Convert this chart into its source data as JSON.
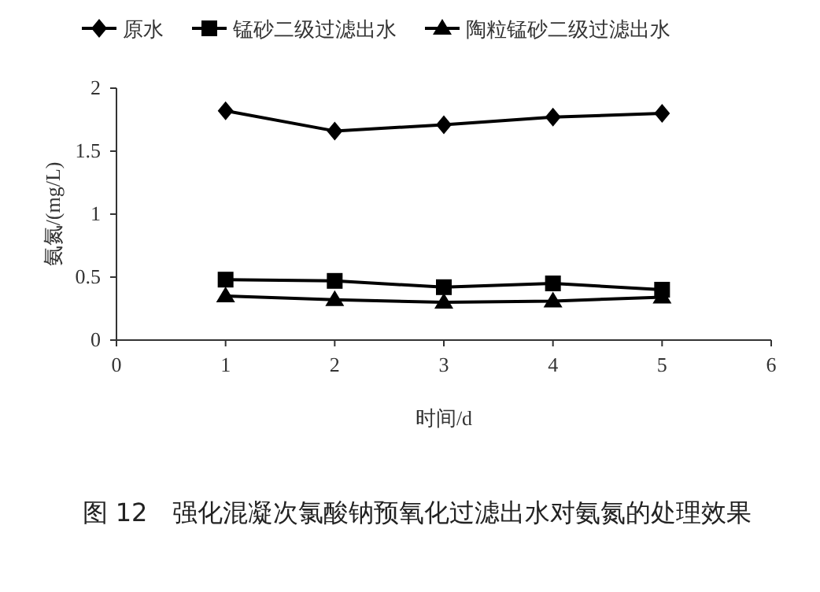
{
  "chart_data": {
    "type": "line",
    "x": [
      1,
      2,
      3,
      4,
      5
    ],
    "xlim": [
      0,
      6
    ],
    "xticks": [
      0,
      1,
      2,
      3,
      4,
      5,
      6
    ],
    "ylim": [
      0,
      2
    ],
    "yticks": [
      0,
      0.5,
      1,
      1.5,
      2
    ],
    "xlabel": "时间/d",
    "ylabel": "氨氮/(mg/L)",
    "legend": "top",
    "series": [
      {
        "name": "原水",
        "color": "#000000",
        "marker": "diamond",
        "values": [
          1.82,
          1.66,
          1.71,
          1.77,
          1.8
        ]
      },
      {
        "name": "锰砂二级过滤出水",
        "color": "#000000",
        "marker": "square",
        "values": [
          0.48,
          0.47,
          0.42,
          0.45,
          0.4
        ]
      },
      {
        "name": "陶粒锰砂二级过滤出水",
        "color": "#000000",
        "marker": "triangle",
        "values": [
          0.35,
          0.32,
          0.3,
          0.31,
          0.34
        ]
      }
    ],
    "annotations": [
      "图 12　强化混凝次氯酸钠预氧化过滤出水对氨氮的处理效果"
    ]
  }
}
